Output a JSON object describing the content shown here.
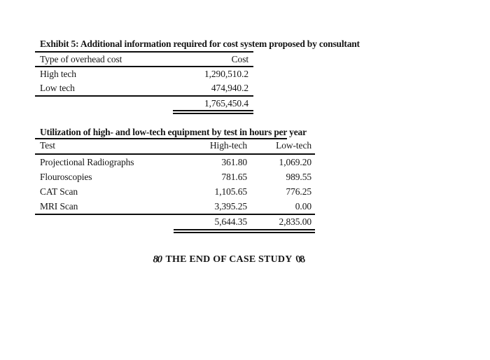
{
  "exhibit_table": {
    "title": "Exhibit 5: Additional information required for cost system proposed by consultant",
    "columns": [
      "Type of overhead cost",
      "Cost"
    ],
    "rows": [
      {
        "label": "High tech",
        "cost": "1,290,510.2"
      },
      {
        "label": "Low tech",
        "cost": "474,940.2"
      }
    ],
    "total": "1,765,450.4"
  },
  "utilization_table": {
    "title_underlined": "Utilization of high- and low-tech equipment by test in hours per",
    "title_rest": "year",
    "columns": [
      "Test",
      "High-tech",
      "Low-tech"
    ],
    "rows": [
      {
        "test": "Projectional Radiographs",
        "high_tech": "361.80",
        "low_tech": "1,069.20"
      },
      {
        "test": "Flouroscopies",
        "high_tech": "781.65",
        "low_tech": "989.55"
      },
      {
        "test": "CAT Scan",
        "high_tech": "1,105.65",
        "low_tech": "776.25"
      },
      {
        "test": "MRI Scan",
        "high_tech": "3,395.25",
        "low_tech": "0.00"
      }
    ],
    "totals": {
      "high_tech": "5,644.35",
      "low_tech": "2,835.00"
    }
  },
  "end_marker": {
    "ornament": "80",
    "text": "THE END OF CASE STUDY"
  },
  "colors": {
    "page_background": "#ffffff",
    "text": "#161616",
    "rule": "#0d0d0d"
  }
}
